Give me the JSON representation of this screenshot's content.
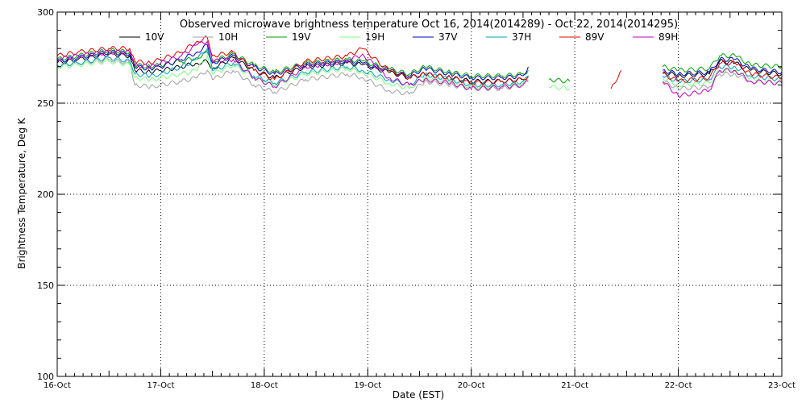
{
  "chart_data": {
    "type": "line",
    "title": "Observed microwave brightness temperature Oct 16, 2014(2014289) - Oct 22, 2014(2014295)",
    "xlabel": "Date (EST)",
    "ylabel": "Brightness Temperature, Deg K",
    "x_ticks": [
      "16-Oct",
      "17-Oct",
      "18-Oct",
      "19-Oct",
      "20-Oct",
      "21-Oct",
      "22-Oct",
      "23-Oct"
    ],
    "xlim": [
      0,
      7
    ],
    "x_unit": "days since 16-Oct",
    "ylim": [
      100,
      300
    ],
    "y_ticks": [
      100,
      150,
      200,
      250,
      300
    ],
    "grid": true,
    "legend_position": "top",
    "series": [
      {
        "name": "10V",
        "color": "#000000",
        "points": [
          [
            0,
            272
          ],
          [
            0.2,
            274
          ],
          [
            0.5,
            277
          ],
          [
            0.7,
            276
          ],
          [
            0.75,
            268
          ],
          [
            0.9,
            267
          ],
          [
            1.0,
            268
          ],
          [
            1.2,
            270
          ],
          [
            1.35,
            272
          ],
          [
            1.45,
            273
          ],
          [
            1.5,
            269
          ],
          [
            1.7,
            275
          ],
          [
            1.9,
            268
          ],
          [
            2.1,
            264
          ],
          [
            2.4,
            270
          ],
          [
            2.8,
            272
          ],
          [
            2.95,
            271
          ],
          [
            3.2,
            267
          ],
          [
            3.4,
            264
          ],
          [
            3.55,
            266
          ],
          [
            3.8,
            264
          ],
          [
            4.0,
            262
          ],
          [
            4.3,
            262
          ],
          [
            4.5,
            263
          ],
          [
            4.55,
            265
          ],
          [
            null,
            null
          ],
          [
            5.85,
            267
          ],
          [
            6.0,
            265
          ],
          [
            6.3,
            266
          ],
          [
            6.4,
            273
          ],
          [
            6.55,
            272
          ],
          [
            6.7,
            268
          ],
          [
            7.0,
            266
          ]
        ]
      },
      {
        "name": "10H",
        "color": "#a0a0a0",
        "points": [
          [
            0,
            271
          ],
          [
            0.2,
            272
          ],
          [
            0.5,
            274
          ],
          [
            0.7,
            272
          ],
          [
            0.75,
            260
          ],
          [
            0.9,
            259
          ],
          [
            1.0,
            260
          ],
          [
            1.2,
            262
          ],
          [
            1.35,
            264
          ],
          [
            1.45,
            268
          ],
          [
            1.5,
            263
          ],
          [
            1.7,
            268
          ],
          [
            1.9,
            260
          ],
          [
            2.1,
            256
          ],
          [
            2.4,
            263
          ],
          [
            2.8,
            266
          ],
          [
            2.95,
            264
          ],
          [
            3.2,
            257
          ],
          [
            3.4,
            255
          ],
          [
            3.55,
            262
          ],
          [
            3.8,
            260
          ],
          [
            4.0,
            258
          ],
          [
            4.3,
            258
          ],
          [
            4.5,
            260
          ],
          [
            4.55,
            262
          ],
          [
            null,
            null
          ],
          [
            5.85,
            262
          ],
          [
            6.0,
            258
          ],
          [
            6.3,
            259
          ],
          [
            6.4,
            266
          ],
          [
            6.55,
            266
          ],
          [
            6.7,
            262
          ],
          [
            7.0,
            261
          ]
        ]
      },
      {
        "name": "19V",
        "color": "#00a000",
        "points": [
          [
            0,
            274
          ],
          [
            0.2,
            276
          ],
          [
            0.5,
            279
          ],
          [
            0.7,
            278
          ],
          [
            0.75,
            271
          ],
          [
            0.9,
            270
          ],
          [
            1.0,
            271
          ],
          [
            1.2,
            273
          ],
          [
            1.35,
            275
          ],
          [
            1.45,
            278
          ],
          [
            1.5,
            273
          ],
          [
            1.7,
            277
          ],
          [
            1.9,
            271
          ],
          [
            2.1,
            267
          ],
          [
            2.4,
            272
          ],
          [
            2.8,
            274
          ],
          [
            2.95,
            273
          ],
          [
            3.2,
            269
          ],
          [
            3.4,
            266
          ],
          [
            3.55,
            270
          ],
          [
            3.8,
            267
          ],
          [
            4.0,
            265
          ],
          [
            4.3,
            265
          ],
          [
            4.5,
            266
          ],
          [
            4.55,
            268
          ],
          [
            null,
            null
          ],
          [
            4.75,
            263
          ],
          [
            4.95,
            262
          ],
          [
            null,
            null
          ],
          [
            5.85,
            270
          ],
          [
            6.0,
            268
          ],
          [
            6.3,
            269
          ],
          [
            6.4,
            276
          ],
          [
            6.55,
            276
          ],
          [
            6.7,
            271
          ],
          [
            7.0,
            270
          ]
        ]
      },
      {
        "name": "19H",
        "color": "#80ff80",
        "points": [
          [
            0,
            270
          ],
          [
            0.2,
            271
          ],
          [
            0.5,
            273
          ],
          [
            0.7,
            271
          ],
          [
            0.75,
            264
          ],
          [
            0.9,
            263
          ],
          [
            1.0,
            264
          ],
          [
            1.2,
            266
          ],
          [
            1.35,
            268
          ],
          [
            1.45,
            276
          ],
          [
            1.5,
            266
          ],
          [
            1.7,
            271
          ],
          [
            1.9,
            264
          ],
          [
            2.1,
            260
          ],
          [
            2.4,
            266
          ],
          [
            2.8,
            269
          ],
          [
            2.95,
            267
          ],
          [
            3.2,
            261
          ],
          [
            3.4,
            258
          ],
          [
            3.55,
            264
          ],
          [
            3.8,
            262
          ],
          [
            4.0,
            259
          ],
          [
            4.3,
            259
          ],
          [
            4.5,
            261
          ],
          [
            4.55,
            263
          ],
          [
            null,
            null
          ],
          [
            4.75,
            259
          ],
          [
            4.95,
            258
          ],
          [
            null,
            null
          ],
          [
            5.85,
            264
          ],
          [
            6.0,
            260
          ],
          [
            6.3,
            261
          ],
          [
            6.4,
            268
          ],
          [
            6.55,
            268
          ],
          [
            6.7,
            264
          ],
          [
            7.0,
            262
          ]
        ]
      },
      {
        "name": "37V",
        "color": "#0000c0",
        "points": [
          [
            0,
            273
          ],
          [
            0.2,
            275
          ],
          [
            0.5,
            278
          ],
          [
            0.7,
            277
          ],
          [
            0.75,
            270
          ],
          [
            0.9,
            269
          ],
          [
            1.0,
            270
          ],
          [
            1.2,
            274
          ],
          [
            1.35,
            278
          ],
          [
            1.45,
            282
          ],
          [
            1.5,
            272
          ],
          [
            1.7,
            276
          ],
          [
            1.9,
            270
          ],
          [
            2.1,
            266
          ],
          [
            2.4,
            271
          ],
          [
            2.8,
            273
          ],
          [
            2.95,
            272
          ],
          [
            3.2,
            268
          ],
          [
            3.4,
            265
          ],
          [
            3.55,
            269
          ],
          [
            3.8,
            266
          ],
          [
            4.0,
            264
          ],
          [
            4.3,
            264
          ],
          [
            4.5,
            265
          ],
          [
            4.55,
            270
          ],
          [
            null,
            null
          ],
          [
            5.85,
            268
          ],
          [
            6.0,
            266
          ],
          [
            6.3,
            267
          ],
          [
            6.4,
            274
          ],
          [
            6.55,
            274
          ],
          [
            6.7,
            269
          ],
          [
            7.0,
            267
          ]
        ]
      },
      {
        "name": "37H",
        "color": "#00a0c0",
        "points": [
          [
            0,
            271
          ],
          [
            0.2,
            272
          ],
          [
            0.5,
            275
          ],
          [
            0.7,
            273
          ],
          [
            0.75,
            266
          ],
          [
            0.9,
            265
          ],
          [
            1.0,
            266
          ],
          [
            1.2,
            270
          ],
          [
            1.35,
            274
          ],
          [
            1.45,
            280
          ],
          [
            1.5,
            268
          ],
          [
            1.7,
            272
          ],
          [
            1.9,
            265
          ],
          [
            2.1,
            261
          ],
          [
            2.4,
            267
          ],
          [
            2.8,
            270
          ],
          [
            2.95,
            268
          ],
          [
            3.2,
            263
          ],
          [
            3.4,
            260
          ],
          [
            3.55,
            266
          ],
          [
            3.8,
            263
          ],
          [
            4.0,
            260
          ],
          [
            4.3,
            260
          ],
          [
            4.5,
            262
          ],
          [
            4.55,
            264
          ],
          [
            null,
            null
          ],
          [
            5.85,
            265
          ],
          [
            6.0,
            262
          ],
          [
            6.3,
            263
          ],
          [
            6.4,
            270
          ],
          [
            6.55,
            270
          ],
          [
            6.7,
            265
          ],
          [
            7.0,
            263
          ]
        ]
      },
      {
        "name": "89V",
        "color": "#e00000",
        "points": [
          [
            0,
            276
          ],
          [
            0.2,
            278
          ],
          [
            0.5,
            280
          ],
          [
            0.7,
            280
          ],
          [
            0.75,
            273
          ],
          [
            0.9,
            272
          ],
          [
            1.0,
            274
          ],
          [
            1.2,
            278
          ],
          [
            1.35,
            284
          ],
          [
            1.45,
            286
          ],
          [
            1.5,
            276
          ],
          [
            1.7,
            278
          ],
          [
            1.9,
            268
          ],
          [
            2.1,
            263
          ],
          [
            2.4,
            273
          ],
          [
            2.8,
            276
          ],
          [
            2.95,
            280
          ],
          [
            3.2,
            268
          ],
          [
            3.4,
            264
          ],
          [
            3.55,
            266
          ],
          [
            3.8,
            264
          ],
          [
            4.0,
            261
          ],
          [
            4.3,
            262
          ],
          [
            4.5,
            263
          ],
          [
            4.55,
            265
          ],
          [
            null,
            null
          ],
          [
            5.35,
            258
          ],
          [
            5.45,
            268
          ],
          [
            null,
            null
          ],
          [
            5.85,
            266
          ],
          [
            6.0,
            262
          ],
          [
            6.3,
            264
          ],
          [
            6.4,
            272
          ],
          [
            6.55,
            272
          ],
          [
            6.7,
            266
          ],
          [
            7.0,
            264
          ]
        ]
      },
      {
        "name": "89H",
        "color": "#c000c0",
        "points": [
          [
            0,
            274
          ],
          [
            0.2,
            276
          ],
          [
            0.5,
            278
          ],
          [
            0.7,
            278
          ],
          [
            0.75,
            271
          ],
          [
            0.9,
            270
          ],
          [
            1.0,
            272
          ],
          [
            1.2,
            276
          ],
          [
            1.35,
            282
          ],
          [
            1.45,
            284
          ],
          [
            1.5,
            273
          ],
          [
            1.7,
            274
          ],
          [
            1.9,
            264
          ],
          [
            2.1,
            259
          ],
          [
            2.4,
            270
          ],
          [
            2.8,
            273
          ],
          [
            2.95,
            277
          ],
          [
            3.2,
            264
          ],
          [
            3.4,
            260
          ],
          [
            3.55,
            263
          ],
          [
            3.8,
            261
          ],
          [
            4.0,
            258
          ],
          [
            4.3,
            259
          ],
          [
            4.5,
            260
          ],
          [
            4.55,
            262
          ],
          [
            null,
            null
          ],
          [
            5.85,
            262
          ],
          [
            6.0,
            254
          ],
          [
            6.3,
            257
          ],
          [
            6.4,
            268
          ],
          [
            6.55,
            268
          ],
          [
            6.7,
            262
          ],
          [
            7.0,
            261
          ]
        ]
      }
    ]
  }
}
